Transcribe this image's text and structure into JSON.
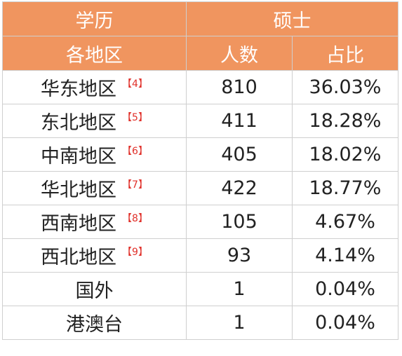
{
  "table": {
    "header_row1": {
      "col1": "学历",
      "col2_3": "硕士"
    },
    "header_row2": {
      "col1": "各地区",
      "col2": "人数",
      "col3": "占比"
    },
    "rows": [
      {
        "region": "华东地区",
        "ref": "【4】",
        "count": "810",
        "pct": "36.03%"
      },
      {
        "region": "东北地区",
        "ref": "【5】",
        "count": "411",
        "pct": "18.28%"
      },
      {
        "region": "中南地区",
        "ref": "【6】",
        "count": "405",
        "pct": "18.02%"
      },
      {
        "region": "华北地区",
        "ref": "【7】",
        "count": "422",
        "pct": "18.77%"
      },
      {
        "region": "西南地区",
        "ref": "【8】",
        "count": "105",
        "pct": "4.67%"
      },
      {
        "region": "西北地区",
        "ref": "【9】",
        "count": "93",
        "pct": "4.14%"
      },
      {
        "region": "国外",
        "ref": "",
        "count": "1",
        "pct": "0.04%"
      },
      {
        "region": "港澳台",
        "ref": "",
        "count": "1",
        "pct": "0.04%"
      }
    ]
  },
  "colors": {
    "header_bg": "#f0955f",
    "header_text": "#ffffff",
    "ref_text": "#e0302a"
  }
}
